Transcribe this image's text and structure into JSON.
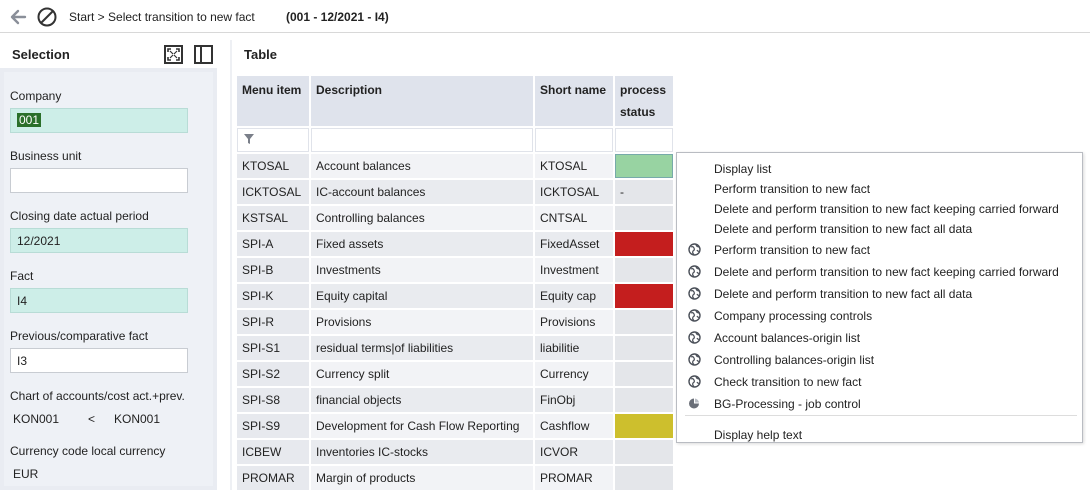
{
  "topbar": {
    "breadcrumb": "Start > Select transition to new fact",
    "context": "(001 - 12/2021 - I4)"
  },
  "selection": {
    "title": "Selection",
    "company_label": "Company",
    "company_value": "001",
    "business_unit_label": "Business unit",
    "business_unit_value": "",
    "closing_date_label": "Closing date actual period",
    "closing_date_value": "12/2021",
    "fact_label": "Fact",
    "fact_value": "I4",
    "prev_fact_label": "Previous/comparative fact",
    "prev_fact_value": "I3",
    "chart_label": "Chart of accounts/cost act.+prev.",
    "chart_from": "KON001",
    "chart_op": "<",
    "chart_to": "KON001",
    "currency_label": "Currency code local currency",
    "currency_value": "EUR"
  },
  "table": {
    "title": "Table",
    "columns": {
      "menu_item": "Menu item",
      "description": "Description",
      "short_name": "Short name",
      "process_status": "process status"
    },
    "rows": [
      {
        "menu": "KTOSAL",
        "desc": "Account balances",
        "short": "KTOSAL",
        "status": "green",
        "status_text": ""
      },
      {
        "menu": "ICKTOSAL",
        "desc": "IC-account balances",
        "short": "ICKTOSAL",
        "status": "none",
        "status_text": "-"
      },
      {
        "menu": "KSTSAL",
        "desc": "Controlling balances",
        "short": "CNTSAL",
        "status": "none",
        "status_text": ""
      },
      {
        "menu": "SPI-A",
        "desc": "Fixed assets",
        "short": "FixedAsset",
        "status": "red",
        "status_text": ""
      },
      {
        "menu": "SPI-B",
        "desc": "Investments",
        "short": "Investment",
        "status": "none",
        "status_text": ""
      },
      {
        "menu": "SPI-K",
        "desc": "Equity capital",
        "short": "Equity cap",
        "status": "red",
        "status_text": ""
      },
      {
        "menu": "SPI-R",
        "desc": "Provisions",
        "short": "Provisions",
        "status": "none",
        "status_text": ""
      },
      {
        "menu": "SPI-S1",
        "desc": "residual terms|of liabilities",
        "short": "liabilitie",
        "status": "none",
        "status_text": ""
      },
      {
        "menu": "SPI-S2",
        "desc": "Currency split",
        "short": "Currency",
        "status": "none",
        "status_text": ""
      },
      {
        "menu": "SPI-S8",
        "desc": "financial objects",
        "short": "FinObj",
        "status": "none",
        "status_text": ""
      },
      {
        "menu": "SPI-S9",
        "desc": "Development for Cash Flow Reporting",
        "short": "Cashflow",
        "status": "yellow",
        "status_text": ""
      },
      {
        "menu": "ICBEW",
        "desc": "Inventories IC-stocks",
        "short": "ICVOR",
        "status": "none",
        "status_text": ""
      },
      {
        "menu": "PROMAR",
        "desc": "Margin of products",
        "short": "PROMAR",
        "status": "none",
        "status_text": ""
      }
    ]
  },
  "context_menu": {
    "items": [
      {
        "label": "Display list",
        "icon": "none"
      },
      {
        "label": "Perform transition to new fact",
        "icon": "none"
      },
      {
        "label": "Delete and perform transition to new fact keeping carried forward",
        "icon": "none"
      },
      {
        "label": "Delete and perform transition to new fact all data",
        "icon": "none"
      },
      {
        "label": "Perform transition to new fact",
        "icon": "globe-icon"
      },
      {
        "label": "Delete and perform transition to new fact keeping carried forward",
        "icon": "globe-icon"
      },
      {
        "label": "Delete and perform transition to new fact all data",
        "icon": "globe-icon"
      },
      {
        "label": "Company processing controls",
        "icon": "globe-icon"
      },
      {
        "label": "Account balances-origin list",
        "icon": "globe-icon"
      },
      {
        "label": "Controlling balances-origin list",
        "icon": "globe-icon"
      },
      {
        "label": "Check transition to new fact",
        "icon": "globe-icon"
      },
      {
        "label": "BG-Processing - job control",
        "icon": "job-control-icon"
      },
      {
        "label": "Display help text",
        "icon": "none"
      }
    ]
  },
  "colors": {
    "status_green": "#98d3a2",
    "status_red": "#c41e1e",
    "status_yellow": "#cdbf2d",
    "filled_input": "#cdeee8"
  }
}
